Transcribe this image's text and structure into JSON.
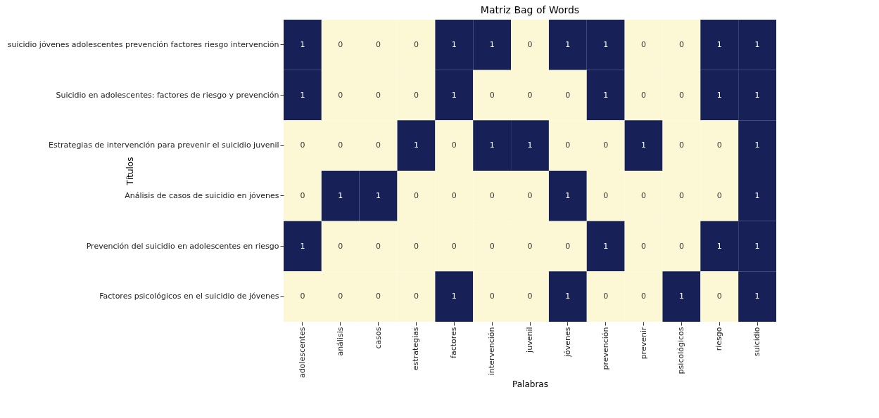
{
  "chart_data": {
    "type": "heatmap",
    "data_labels": true,
    "title": "Matriz Bag of Words",
    "xlabel": "Palabras",
    "ylabel": "Títulos",
    "categories": [
      "adolescentes",
      "análisis",
      "casos",
      "estrategias",
      "factores",
      "intervención",
      "juvenil",
      "jóvenes",
      "prevención",
      "prevenir",
      "psicológicos",
      "riesgo",
      "suicidio"
    ],
    "y_categories": [
      "suicidio jóvenes adolescentes prevención factores riesgo intervención",
      "Suicidio en adolescentes: factores de riesgo y prevención",
      "Estrategias de intervención para prevenir el suicidio juvenil",
      "Análisis de casos de suicidio en jóvenes",
      "Prevención del suicidio en adolescentes en riesgo",
      "Factores psicológicos en el suicidio de jóvenes"
    ],
    "cells": [
      [
        1,
        0,
        0,
        0,
        1,
        1,
        0,
        1,
        1,
        0,
        0,
        1,
        1
      ],
      [
        1,
        0,
        0,
        0,
        1,
        0,
        0,
        0,
        1,
        0,
        0,
        1,
        1
      ],
      [
        0,
        0,
        0,
        1,
        0,
        1,
        1,
        0,
        0,
        1,
        0,
        0,
        1
      ],
      [
        0,
        1,
        1,
        0,
        0,
        0,
        0,
        1,
        0,
        0,
        0,
        0,
        1
      ],
      [
        1,
        0,
        0,
        0,
        0,
        0,
        0,
        0,
        1,
        0,
        0,
        1,
        1
      ],
      [
        0,
        0,
        0,
        0,
        1,
        0,
        0,
        1,
        0,
        0,
        1,
        0,
        1
      ]
    ]
  }
}
